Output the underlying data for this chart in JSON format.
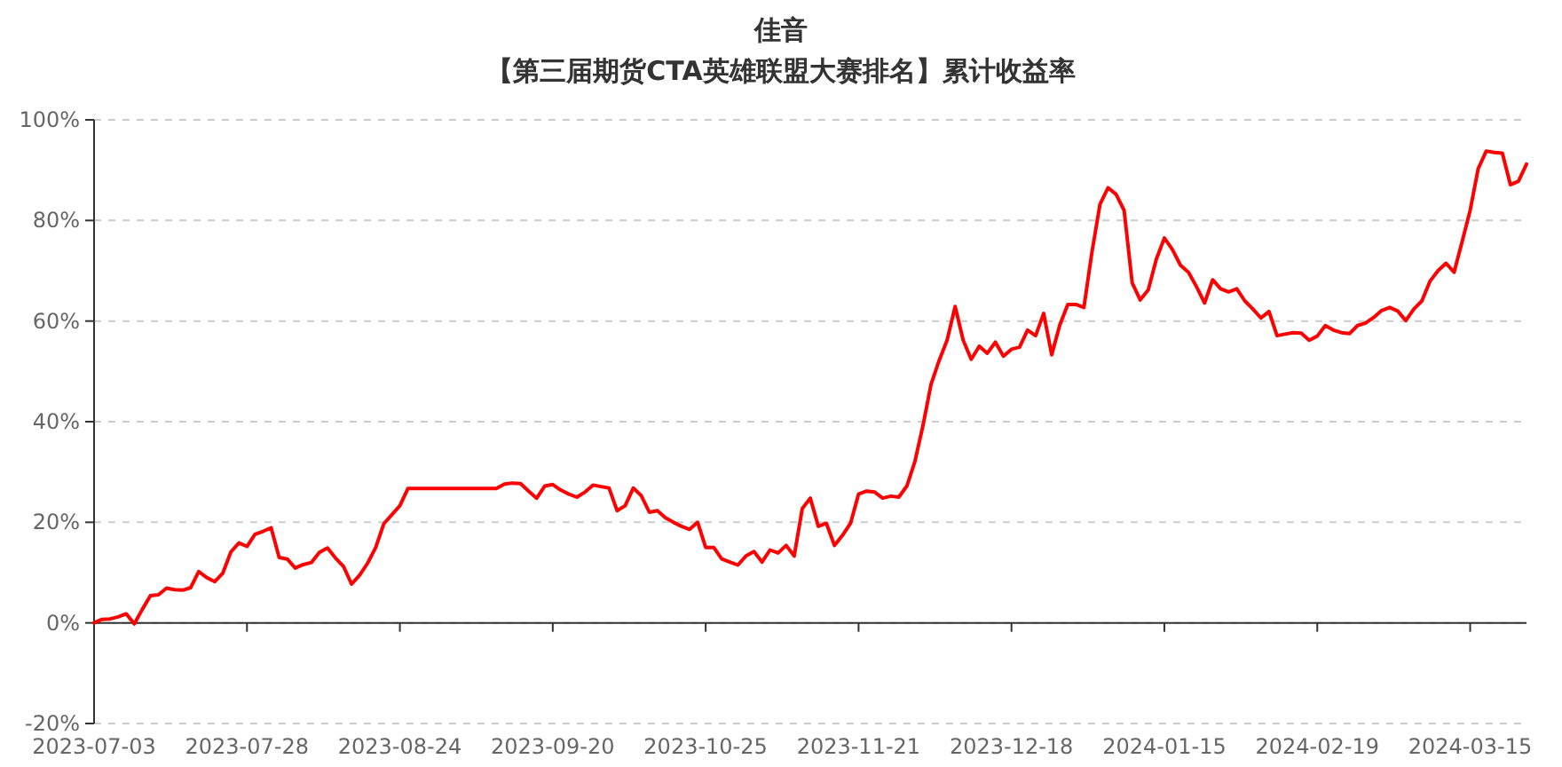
{
  "chart_data": {
    "type": "line",
    "title": "佳音",
    "subtitle": "【第三届期货CTA英雄联盟大赛排名】累计收益率",
    "categories": [
      "2023-07-03",
      null,
      null,
      null,
      null,
      null,
      null,
      null,
      null,
      null,
      null,
      null,
      null,
      null,
      null,
      null,
      null,
      null,
      null,
      "2023-07-28",
      null,
      null,
      null,
      null,
      null,
      null,
      null,
      null,
      null,
      null,
      null,
      null,
      null,
      null,
      null,
      null,
      null,
      null,
      "2023-08-24",
      null,
      null,
      null,
      null,
      null,
      null,
      null,
      null,
      null,
      null,
      null,
      null,
      null,
      null,
      null,
      null,
      null,
      null,
      "2023-09-20",
      null,
      null,
      null,
      null,
      null,
      null,
      null,
      null,
      null,
      null,
      null,
      null,
      null,
      null,
      null,
      null,
      null,
      null,
      "2023-10-25",
      null,
      null,
      null,
      null,
      null,
      null,
      null,
      null,
      null,
      null,
      null,
      null,
      null,
      null,
      null,
      null,
      null,
      null,
      "2023-11-21",
      null,
      null,
      null,
      null,
      null,
      null,
      null,
      null,
      null,
      null,
      null,
      null,
      null,
      null,
      null,
      null,
      null,
      null,
      "2023-12-18",
      null,
      null,
      null,
      null,
      null,
      null,
      null,
      null,
      null,
      null,
      null,
      null,
      null,
      null,
      null,
      null,
      null,
      null,
      "2024-01-15",
      null,
      null,
      null,
      null,
      null,
      null,
      null,
      null,
      null,
      null,
      null,
      null,
      null,
      null,
      null,
      null,
      null,
      null,
      "2024-02-19",
      null,
      null,
      null,
      null,
      null,
      null,
      null,
      null,
      null,
      null,
      null,
      null,
      null,
      null,
      null,
      null,
      null,
      null,
      "2024-03-15",
      null,
      null,
      null,
      null,
      null,
      null,
      null
    ],
    "values": [
      0,
      0.7,
      0.8,
      1.2,
      1.8,
      -0.2,
      2.7,
      5.4,
      5.6,
      6.9,
      6.6,
      6.5,
      7.0,
      10.2,
      9.0,
      8.2,
      9.9,
      14.1,
      15.9,
      15.2,
      17.6,
      18.2,
      18.9,
      13.0,
      12.7,
      10.9,
      11.6,
      12.0,
      14.0,
      14.9,
      12.9,
      11.2,
      7.7,
      9.5,
      11.9,
      15.0,
      19.7,
      21.5,
      23.3,
      26.7,
      26.7,
      26.7,
      26.7,
      26.7,
      26.7,
      26.7,
      26.7,
      26.7,
      26.7,
      26.7,
      26.7,
      27.6,
      27.8,
      27.7,
      26.2,
      24.8,
      27.2,
      27.5,
      26.4,
      25.6,
      25.0,
      26.0,
      27.4,
      27.1,
      26.8,
      22.3,
      23.3,
      26.8,
      25.3,
      22.0,
      22.3,
      20.9,
      20.0,
      19.2,
      18.6,
      20.0,
      15.0,
      15.0,
      12.7,
      12.1,
      11.5,
      13.3,
      14.2,
      12.1,
      14.5,
      13.9,
      15.4,
      13.3,
      22.7,
      24.8,
      19.2,
      19.8,
      15.4,
      17.4,
      19.8,
      25.6,
      26.2,
      26.0,
      24.8,
      25.2,
      25.0,
      27.2,
      32.1,
      39.2,
      47.4,
      52.1,
      56.2,
      62.9,
      56.2,
      52.4,
      55.0,
      53.6,
      55.8,
      53.0,
      54.4,
      54.8,
      58.2,
      57.1,
      61.5,
      53.3,
      59.2,
      63.3,
      63.3,
      62.7,
      73.7,
      83.2,
      86.5,
      85.2,
      82.0,
      67.6,
      64.2,
      66.2,
      72.3,
      76.5,
      74.2,
      71.1,
      69.7,
      66.8,
      63.6,
      68.2,
      66.4,
      65.8,
      66.4,
      64.0,
      62.4,
      60.6,
      61.9,
      57.1,
      57.4,
      57.7,
      57.6,
      56.2,
      57.0,
      59.1,
      58.2,
      57.7,
      57.5,
      59.1,
      59.6,
      60.7,
      62.1,
      62.7,
      62.0,
      60.1,
      62.4,
      64.0,
      67.9,
      70.0,
      71.5,
      69.7,
      75.8,
      82.0,
      90.3,
      93.8,
      93.5,
      93.4,
      87.1,
      87.8,
      91.2
    ],
    "color": "#ff0000",
    "ylim": [
      -20,
      100
    ],
    "yticks": [
      {
        "value": -20,
        "label": "-20%"
      },
      {
        "value": 0,
        "label": "0%"
      },
      {
        "value": 20,
        "label": "20%"
      },
      {
        "value": 40,
        "label": "40%"
      },
      {
        "value": 60,
        "label": "60%"
      },
      {
        "value": 80,
        "label": "80%"
      },
      {
        "value": 100,
        "label": "100%"
      }
    ],
    "grid": "y"
  }
}
